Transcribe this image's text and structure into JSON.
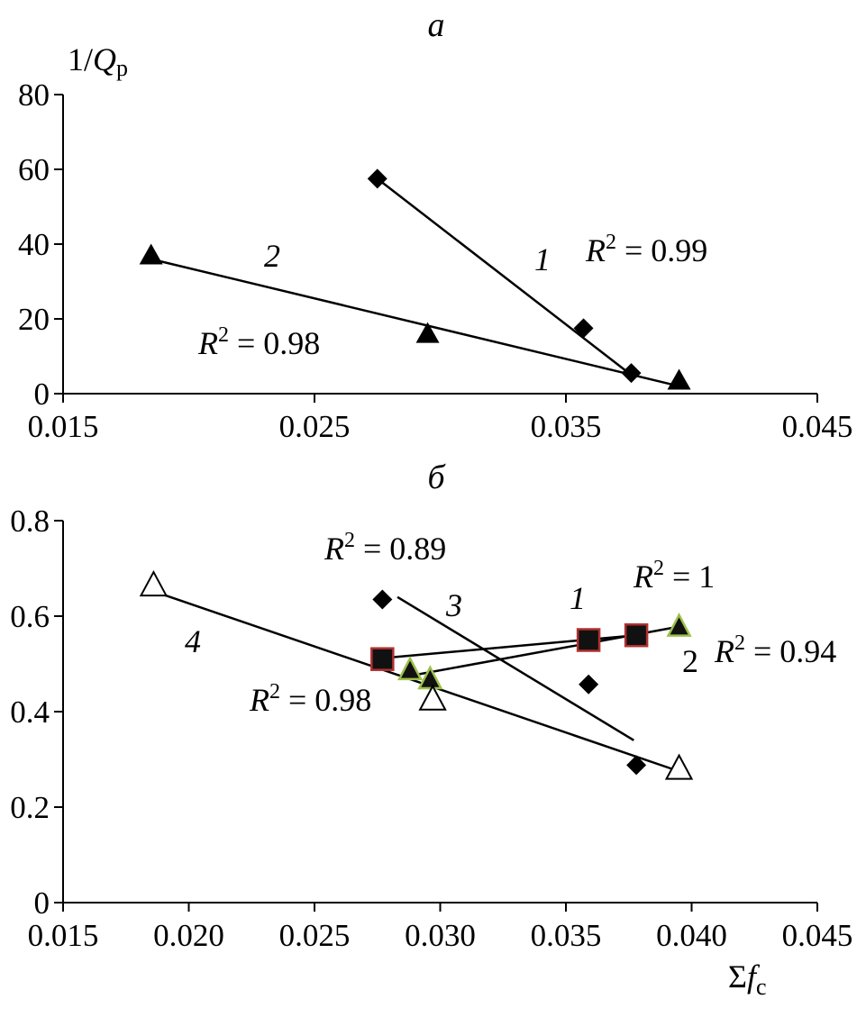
{
  "chart_data": [
    {
      "type": "scatter",
      "title": "a",
      "ylabel_prefix": "1/",
      "ylabel_var": "Q",
      "ylabel_sub": "p",
      "xlim": [
        0.015,
        0.045
      ],
      "ylim": [
        0,
        80
      ],
      "xticks": [
        "0.015",
        "0.025",
        "0.035",
        "0.045"
      ],
      "yticks": [
        "0",
        "20",
        "40",
        "60",
        "80"
      ],
      "series": [
        {
          "name": "1",
          "marker": "diamond",
          "points": [
            [
              0.0275,
              57.5
            ],
            [
              0.0357,
              17.5
            ],
            [
              0.0376,
              5.5
            ]
          ],
          "fit": [
            [
              0.0275,
              57.5
            ],
            [
              0.0376,
              5.0
            ]
          ],
          "label": "1",
          "r2_var": "R",
          "r2_rest": " = 0.99"
        },
        {
          "name": "2",
          "marker": "triangle-filled",
          "points": [
            [
              0.0185,
              37.0
            ],
            [
              0.0295,
              16.0
            ],
            [
              0.0395,
              3.5
            ]
          ],
          "fit": [
            [
              0.0185,
              36.0
            ],
            [
              0.0395,
              2.0
            ]
          ],
          "label": "2",
          "r2_var": "R",
          "r2_rest": " = 0.98"
        }
      ]
    },
    {
      "type": "scatter",
      "title": "б",
      "xlabel_prefix": "Σ",
      "xlabel_var": "f",
      "xlabel_sub": "c",
      "xlim": [
        0.015,
        0.045
      ],
      "ylim": [
        0,
        0.8
      ],
      "xticks": [
        "0.015",
        "0.020",
        "0.025",
        "0.030",
        "0.035",
        "0.040",
        "0.045"
      ],
      "yticks": [
        "0",
        "0.2",
        "0.4",
        "0.6",
        "0.8"
      ],
      "series": [
        {
          "name": "1",
          "marker": "square",
          "points": [
            [
              0.0277,
              0.51
            ],
            [
              0.0359,
              0.55
            ],
            [
              0.0378,
              0.56
            ]
          ],
          "fit": [
            [
              0.0277,
              0.512
            ],
            [
              0.0378,
              0.56
            ]
          ],
          "label": "1",
          "r2_var": "R",
          "r2_rest": " = 1"
        },
        {
          "name": "2",
          "marker": "triangle-green",
          "points": [
            [
              0.0288,
              0.487
            ],
            [
              0.0296,
              0.468
            ],
            [
              0.0395,
              0.578
            ]
          ],
          "fit": [
            [
              0.0288,
              0.475
            ],
            [
              0.0395,
              0.578
            ]
          ],
          "label": "2",
          "r2_var": "R",
          "r2_rest": " = 0.94"
        },
        {
          "name": "3",
          "marker": "diamond",
          "points": [
            [
              0.0277,
              0.635
            ],
            [
              0.0359,
              0.457
            ],
            [
              0.0378,
              0.288
            ]
          ],
          "fit": [
            [
              0.0283,
              0.64
            ],
            [
              0.0377,
              0.34
            ]
          ],
          "label": "3",
          "r2_var": "R",
          "r2_rest": " = 0.89"
        },
        {
          "name": "4",
          "marker": "triangle-open",
          "points": [
            [
              0.0186,
              0.664
            ],
            [
              0.0297,
              0.425
            ],
            [
              0.0395,
              0.28
            ]
          ],
          "fit": [
            [
              0.0186,
              0.652
            ],
            [
              0.0395,
              0.275
            ]
          ],
          "label": "4",
          "r2_var": "R",
          "r2_rest": " = 0.98"
        }
      ]
    }
  ]
}
